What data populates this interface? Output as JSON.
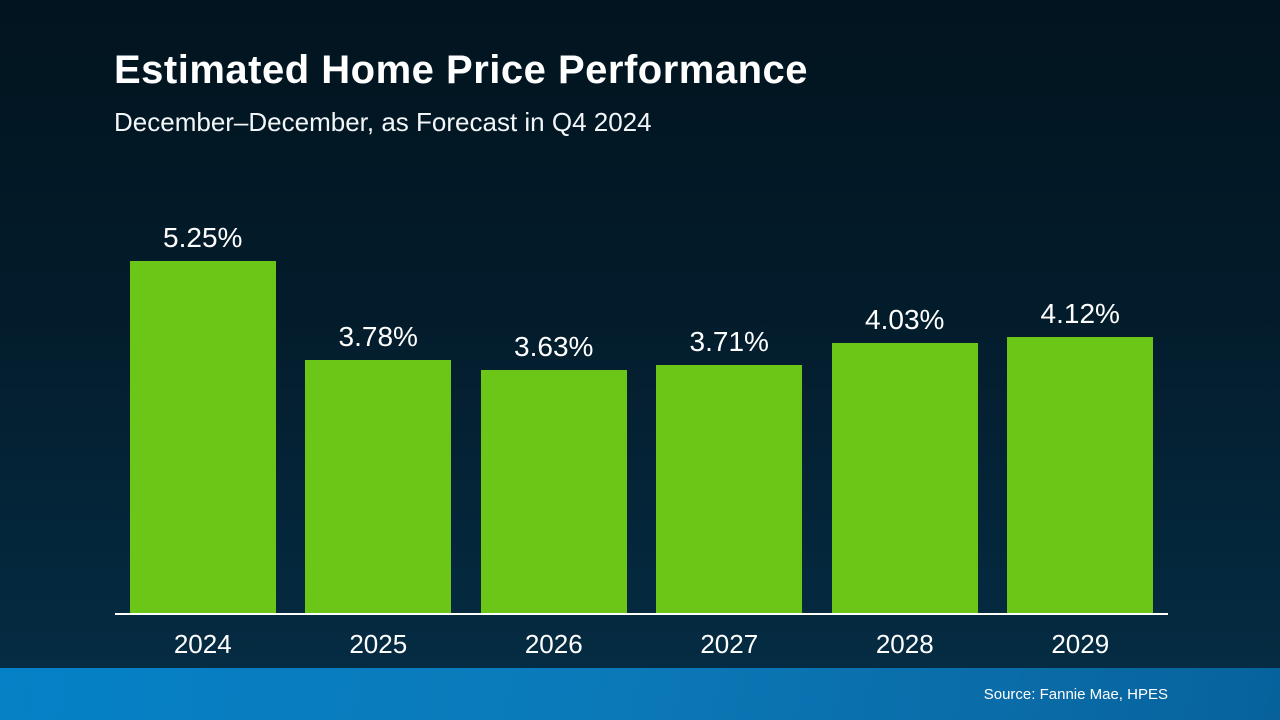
{
  "header": {
    "title": "Estimated Home Price Performance",
    "subtitle": "December–December, as Forecast in Q4 2024"
  },
  "footer": {
    "source": "Source: Fannie Mae, HPES"
  },
  "colors": {
    "bar": "#6cc617",
    "background_top": "#02141f",
    "background_bottom": "#052c43",
    "footer_band_left": "#0581c7",
    "footer_band_right": "#07629c",
    "axis": "#ffffff",
    "text": "#ffffff"
  },
  "chart_data": {
    "type": "bar",
    "title": "Estimated Home Price Performance",
    "subtitle": "December–December, as Forecast in Q4 2024",
    "categories": [
      "2024",
      "2025",
      "2026",
      "2027",
      "2028",
      "2029"
    ],
    "values": [
      5.25,
      3.78,
      3.63,
      3.71,
      4.03,
      4.12
    ],
    "value_labels": [
      "5.25%",
      "3.78%",
      "3.63%",
      "3.71%",
      "4.03%",
      "4.12%"
    ],
    "xlabel": "",
    "ylabel": "",
    "ylim": [
      0,
      5.25
    ],
    "grid": false,
    "legend": false,
    "source": "Source: Fannie Mae, HPES"
  }
}
